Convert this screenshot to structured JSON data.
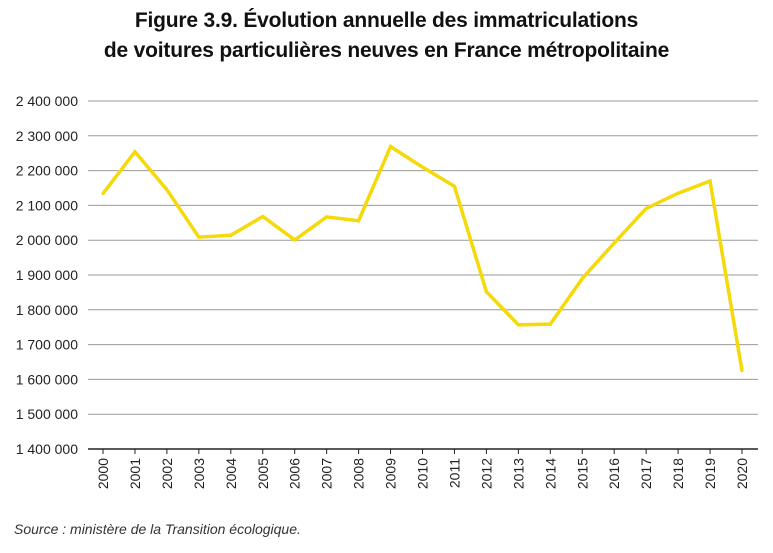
{
  "title_lines": [
    "Figure 3.9. Évolution annuelle des immatriculations",
    "de voitures particulières neuves en France métropolitaine"
  ],
  "source": "Source : ministère de la Transition écologique.",
  "chart_data": {
    "type": "line",
    "title": "Figure 3.9. Évolution annuelle des immatriculations de voitures particulières neuves en France métropolitaine",
    "xlabel": "",
    "ylabel": "",
    "x": [
      "2000",
      "2001",
      "2002",
      "2003",
      "2004",
      "2005",
      "2006",
      "2007",
      "2008",
      "2009",
      "2010",
      "2011",
      "2012",
      "2013",
      "2014",
      "2015",
      "2016",
      "2017",
      "2018",
      "2019",
      "2020"
    ],
    "series": [
      {
        "values": [
          2134000,
          2254000,
          2145000,
          2009000,
          2014000,
          2068000,
          2001000,
          2067000,
          2056000,
          2269000,
          2210000,
          2155000,
          1852000,
          1757000,
          1759000,
          1890000,
          1992000,
          2091000,
          2135000,
          2170000,
          1625000
        ]
      }
    ],
    "ylim": [
      1400000,
      2400000
    ],
    "yticks": [
      1400000,
      1500000,
      1600000,
      1700000,
      1800000,
      1900000,
      2000000,
      2100000,
      2200000,
      2300000,
      2400000
    ],
    "ytick_labels": [
      "1 400 000",
      "1 500 000",
      "1 600 000",
      "1 700 000",
      "1 800 000",
      "1 900 000",
      "2 000 000",
      "2 100 000",
      "2 200 000",
      "2 300 000",
      "2 400 000"
    ],
    "grid": true,
    "legend": "none",
    "line_color": "#f5d90a",
    "grid_color": "#9a9a9a"
  }
}
